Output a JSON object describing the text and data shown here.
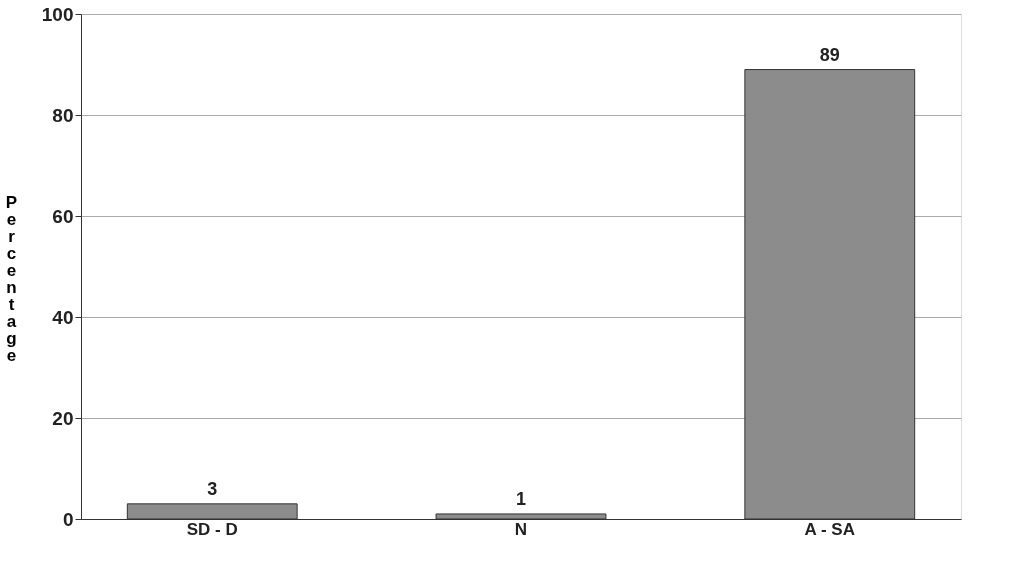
{
  "chart_data": {
    "type": "bar",
    "ylabel": "Percentage",
    "categories": [
      "SD - D",
      "N",
      "A - SA"
    ],
    "values": [
      3,
      1,
      89
    ],
    "color": "#8c8c8c",
    "ylim": [
      0,
      100
    ],
    "yticks": [
      0,
      20,
      40,
      60,
      80,
      100
    ],
    "grid": "y",
    "data_labels": true
  }
}
